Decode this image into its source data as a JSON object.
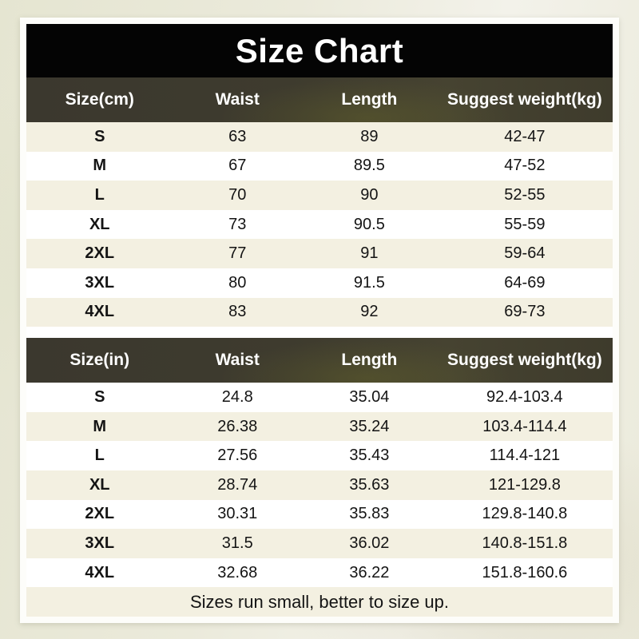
{
  "title": "Size Chart",
  "footer_note": "Sizes run small, better to size up.",
  "tables": [
    {
      "headers": [
        "Size(cm)",
        "Waist",
        "Length",
        "Suggest weight(kg)"
      ],
      "rows": [
        [
          "S",
          "63",
          "89",
          "42-47"
        ],
        [
          "M",
          "67",
          "89.5",
          "47-52"
        ],
        [
          "L",
          "70",
          "90",
          "52-55"
        ],
        [
          "XL",
          "73",
          "90.5",
          "55-59"
        ],
        [
          "2XL",
          "77",
          "91",
          "59-64"
        ],
        [
          "3XL",
          "80",
          "91.5",
          "64-69"
        ],
        [
          "4XL",
          "83",
          "92",
          "69-73"
        ]
      ]
    },
    {
      "headers": [
        "Size(in)",
        "Waist",
        "Length",
        "Suggest weight(kg)"
      ],
      "rows": [
        [
          "S",
          "24.8",
          "35.04",
          "92.4-103.4"
        ],
        [
          "M",
          "26.38",
          "35.24",
          "103.4-114.4"
        ],
        [
          "L",
          "27.56",
          "35.43",
          "114.4-121"
        ],
        [
          "XL",
          "28.74",
          "35.63",
          "121-129.8"
        ],
        [
          "2XL",
          "30.31",
          "35.83",
          "129.8-140.8"
        ],
        [
          "3XL",
          "31.5",
          "36.02",
          "140.8-151.8"
        ],
        [
          "4XL",
          "32.68",
          "36.22",
          "151.8-160.6"
        ]
      ]
    }
  ],
  "colors": {
    "title-bg": "#040404",
    "title-text": "#ffffff",
    "header-bg": "#3d3a2e",
    "header-text": "#ffffff",
    "row-cream": "#f3f0e1",
    "row-white": "#ffffff",
    "body-text": "#141414",
    "card-border": "#fdfdfa",
    "page-bg": "#ebeadb",
    "page-bg-left": "#e5e5d1",
    "page-bg-right": "#f3f2ea"
  }
}
